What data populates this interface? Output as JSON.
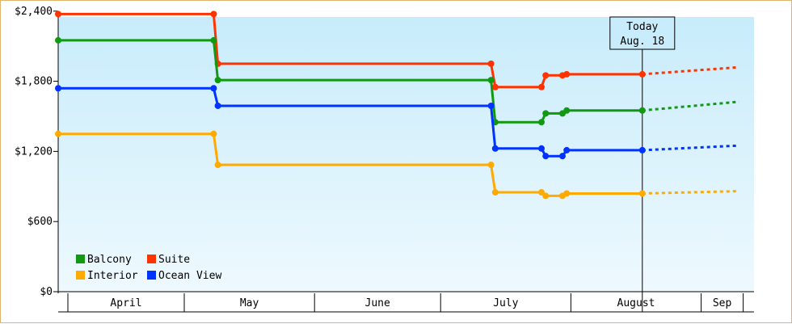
{
  "chart_data": {
    "type": "line",
    "line_style": "step",
    "y_tick_labels": [
      "$0",
      "$600",
      "$1,200",
      "$1,800",
      "$2,400"
    ],
    "ylim": [
      0,
      2350
    ],
    "x_months": [
      {
        "label": "April",
        "start": "2011-04-01",
        "end": "2011-04-30"
      },
      {
        "label": "May",
        "start": "2011-05-01",
        "end": "2011-05-31"
      },
      {
        "label": "June",
        "start": "2011-06-01",
        "end": "2011-06-30"
      },
      {
        "label": "July",
        "start": "2011-07-01",
        "end": "2011-07-31"
      },
      {
        "label": "August",
        "start": "2011-08-01",
        "end": "2011-08-31"
      },
      {
        "label": "Sep",
        "start": "2011-09-01",
        "end": "2011-09-10"
      }
    ],
    "today": {
      "line1": "Today",
      "line2": "Aug. 18",
      "date": "2011-08-18"
    },
    "series": [
      {
        "name": "Suite",
        "color": "#ff3300",
        "points": [
          [
            "2011-04-01",
            2375
          ],
          [
            "2011-05-08",
            2375
          ],
          [
            "2011-05-09",
            1950
          ],
          [
            "2011-07-13",
            1950
          ],
          [
            "2011-07-14",
            1750
          ],
          [
            "2011-07-25",
            1750
          ],
          [
            "2011-07-26",
            1850
          ],
          [
            "2011-07-30",
            1850
          ],
          [
            "2011-07-31",
            1860
          ],
          [
            "2011-08-18",
            1860
          ]
        ],
        "projection": [
          [
            "2011-08-18",
            1860
          ],
          [
            "2011-09-10",
            1920
          ]
        ]
      },
      {
        "name": "Balcony",
        "color": "#119911",
        "points": [
          [
            "2011-04-01",
            2150
          ],
          [
            "2011-05-08",
            2150
          ],
          [
            "2011-05-09",
            1810
          ],
          [
            "2011-07-13",
            1810
          ],
          [
            "2011-07-14",
            1450
          ],
          [
            "2011-07-25",
            1450
          ],
          [
            "2011-07-26",
            1525
          ],
          [
            "2011-07-30",
            1525
          ],
          [
            "2011-07-31",
            1550
          ],
          [
            "2011-08-18",
            1550
          ]
        ],
        "projection": [
          [
            "2011-08-18",
            1550
          ],
          [
            "2011-09-10",
            1625
          ]
        ]
      },
      {
        "name": "Ocean View",
        "color": "#0033ff",
        "points": [
          [
            "2011-04-01",
            1740
          ],
          [
            "2011-05-08",
            1740
          ],
          [
            "2011-05-09",
            1590
          ],
          [
            "2011-07-13",
            1590
          ],
          [
            "2011-07-14",
            1225
          ],
          [
            "2011-07-25",
            1225
          ],
          [
            "2011-07-26",
            1160
          ],
          [
            "2011-07-30",
            1160
          ],
          [
            "2011-07-31",
            1210
          ],
          [
            "2011-08-18",
            1210
          ]
        ],
        "projection": [
          [
            "2011-08-18",
            1210
          ],
          [
            "2011-09-10",
            1250
          ]
        ]
      },
      {
        "name": "Interior",
        "color": "#ffaa00",
        "points": [
          [
            "2011-04-01",
            1350
          ],
          [
            "2011-05-08",
            1350
          ],
          [
            "2011-05-09",
            1085
          ],
          [
            "2011-07-13",
            1085
          ],
          [
            "2011-07-14",
            850
          ],
          [
            "2011-07-25",
            850
          ],
          [
            "2011-07-26",
            820
          ],
          [
            "2011-07-30",
            820
          ],
          [
            "2011-07-31",
            840
          ],
          [
            "2011-08-18",
            840
          ]
        ],
        "projection": [
          [
            "2011-08-18",
            840
          ],
          [
            "2011-09-10",
            860
          ]
        ]
      }
    ],
    "legend": [
      {
        "name": "Balcony",
        "color": "#119911"
      },
      {
        "name": "Suite",
        "color": "#ff3300"
      },
      {
        "name": "Interior",
        "color": "#ffaa00"
      },
      {
        "name": "Ocean View",
        "color": "#0033ff"
      }
    ],
    "legend_position": "bottom-left",
    "background_gradient": [
      "#c8ecfb",
      "#eef9fe"
    ]
  }
}
